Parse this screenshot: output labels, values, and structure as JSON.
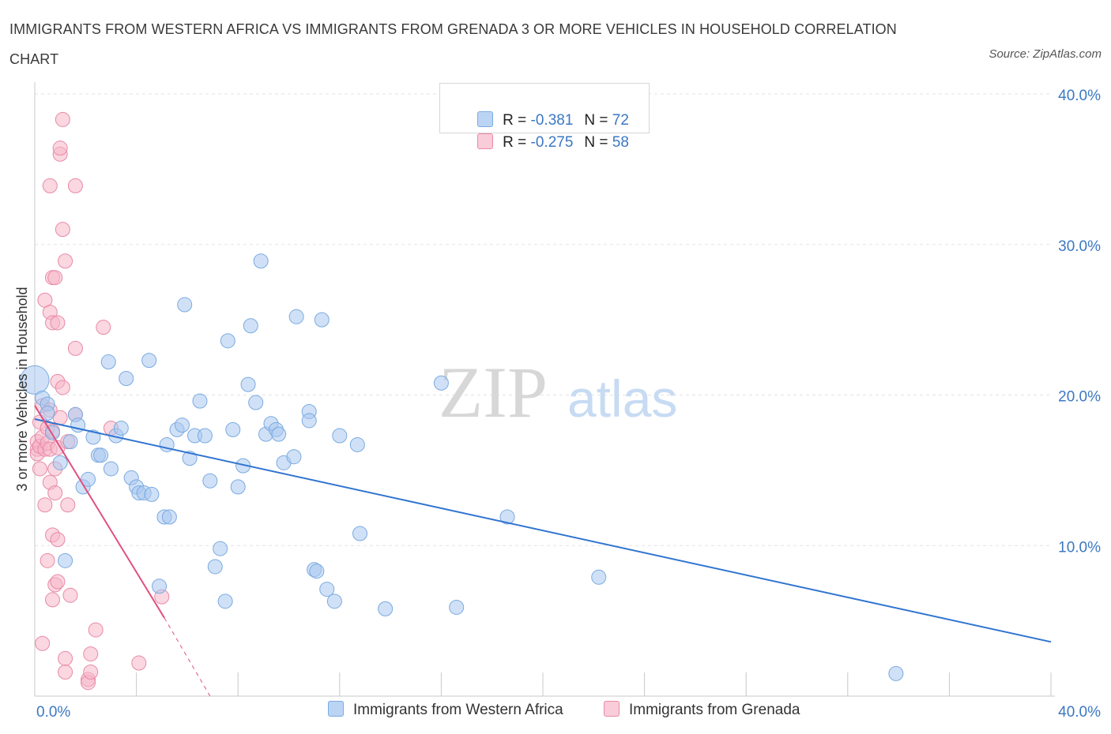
{
  "title": "IMMIGRANTS FROM WESTERN AFRICA VS IMMIGRANTS FROM GRENADA 3 OR MORE VEHICLES IN HOUSEHOLD CORRELATION CHART",
  "source": "Source: ZipAtlas.com",
  "watermark": {
    "zip": "ZIP",
    "atlas": "atlas"
  },
  "legend": {
    "rows": [
      {
        "r_label": "R =",
        "r_value": "-0.381",
        "n_label": "N =",
        "n_value": "72",
        "color": "#a9c8f0"
      },
      {
        "r_label": "R =",
        "r_value": "-0.275",
        "n_label": "N =",
        "n_value": "58",
        "color": "#f5b6c9"
      }
    ]
  },
  "colors": {
    "blue_fill": "#a9c8f0",
    "blue_stroke": "#7aaae0",
    "blue_line": "#2f74d0",
    "pink_fill": "#f5b6c9",
    "pink_stroke": "#e88aa6",
    "pink_line": "#e0507f",
    "grid": "#e3e3e3",
    "tick_label": "#3b78c3"
  },
  "chart_data": {
    "type": "scatter",
    "title": "IMMIGRANTS FROM WESTERN AFRICA VS IMMIGRANTS FROM GRENADA 3 OR MORE VEHICLES IN HOUSEHOLD CORRELATION CHART",
    "xlabel": "",
    "ylabel": "3 or more Vehicles in Household",
    "xlim": [
      0,
      40
    ],
    "ylim": [
      0,
      40
    ],
    "x_tick_labels": [
      "0.0%",
      "40.0%"
    ],
    "y_tick_labels": [
      "10.0%",
      "20.0%",
      "30.0%",
      "40.0%"
    ],
    "y_ticks": [
      10,
      20,
      30,
      40
    ],
    "grid": true,
    "series": [
      {
        "name": "Immigrants from Western Africa",
        "r": -0.381,
        "n": 72,
        "trend": {
          "x": [
            0,
            40
          ],
          "y": [
            18.4,
            3.6
          ]
        },
        "points": [
          {
            "x": 0.0,
            "y": 21.0,
            "big": 1
          },
          {
            "x": 0.3,
            "y": 19.8
          },
          {
            "x": 0.5,
            "y": 19.4
          },
          {
            "x": 0.5,
            "y": 18.8
          },
          {
            "x": 0.7,
            "y": 17.5
          },
          {
            "x": 1.0,
            "y": 15.5
          },
          {
            "x": 1.2,
            "y": 9.0
          },
          {
            "x": 1.4,
            "y": 16.9
          },
          {
            "x": 1.6,
            "y": 18.7
          },
          {
            "x": 1.7,
            "y": 18.0
          },
          {
            "x": 1.9,
            "y": 13.9
          },
          {
            "x": 2.1,
            "y": 14.4
          },
          {
            "x": 2.3,
            "y": 17.2
          },
          {
            "x": 2.5,
            "y": 16.0
          },
          {
            "x": 2.6,
            "y": 16.0
          },
          {
            "x": 2.9,
            "y": 22.2
          },
          {
            "x": 3.0,
            "y": 15.1
          },
          {
            "x": 3.2,
            "y": 17.3
          },
          {
            "x": 3.4,
            "y": 17.8
          },
          {
            "x": 3.6,
            "y": 21.1
          },
          {
            "x": 3.8,
            "y": 14.5
          },
          {
            "x": 4.0,
            "y": 13.9
          },
          {
            "x": 4.1,
            "y": 13.5
          },
          {
            "x": 4.3,
            "y": 13.5
          },
          {
            "x": 4.5,
            "y": 22.3
          },
          {
            "x": 4.6,
            "y": 13.4
          },
          {
            "x": 4.9,
            "y": 7.3
          },
          {
            "x": 5.1,
            "y": 11.9
          },
          {
            "x": 5.2,
            "y": 16.7
          },
          {
            "x": 5.3,
            "y": 11.9
          },
          {
            "x": 5.6,
            "y": 17.7
          },
          {
            "x": 5.8,
            "y": 18.0
          },
          {
            "x": 5.9,
            "y": 26.0
          },
          {
            "x": 6.1,
            "y": 15.8
          },
          {
            "x": 6.3,
            "y": 17.3
          },
          {
            "x": 6.5,
            "y": 19.6
          },
          {
            "x": 6.7,
            "y": 17.3
          },
          {
            "x": 6.9,
            "y": 14.3
          },
          {
            "x": 7.1,
            "y": 8.6
          },
          {
            "x": 7.3,
            "y": 9.8
          },
          {
            "x": 7.5,
            "y": 6.3
          },
          {
            "x": 7.6,
            "y": 23.6
          },
          {
            "x": 7.8,
            "y": 17.7
          },
          {
            "x": 8.0,
            "y": 13.9
          },
          {
            "x": 8.2,
            "y": 15.3
          },
          {
            "x": 8.4,
            "y": 20.7
          },
          {
            "x": 8.5,
            "y": 24.6
          },
          {
            "x": 8.7,
            "y": 19.5
          },
          {
            "x": 8.9,
            "y": 28.9
          },
          {
            "x": 9.1,
            "y": 17.4
          },
          {
            "x": 9.3,
            "y": 18.1
          },
          {
            "x": 9.5,
            "y": 17.7
          },
          {
            "x": 9.6,
            "y": 17.4
          },
          {
            "x": 9.8,
            "y": 15.5
          },
          {
            "x": 10.2,
            "y": 15.9
          },
          {
            "x": 10.3,
            "y": 25.2
          },
          {
            "x": 10.8,
            "y": 18.9
          },
          {
            "x": 10.8,
            "y": 18.3
          },
          {
            "x": 11.0,
            "y": 8.4
          },
          {
            "x": 11.1,
            "y": 8.3
          },
          {
            "x": 11.3,
            "y": 25.0
          },
          {
            "x": 11.5,
            "y": 7.1
          },
          {
            "x": 11.8,
            "y": 6.3
          },
          {
            "x": 12.0,
            "y": 17.3
          },
          {
            "x": 12.7,
            "y": 16.7
          },
          {
            "x": 12.8,
            "y": 10.8
          },
          {
            "x": 13.8,
            "y": 5.8
          },
          {
            "x": 16.0,
            "y": 20.8
          },
          {
            "x": 16.6,
            "y": 5.9
          },
          {
            "x": 18.6,
            "y": 11.9
          },
          {
            "x": 22.2,
            "y": 7.9
          },
          {
            "x": 33.9,
            "y": 1.5
          }
        ]
      },
      {
        "name": "Immigrants from Grenada",
        "r": -0.275,
        "n": 58,
        "trend": {
          "x": [
            0,
            5.1
          ],
          "y": [
            19.3,
            5.2
          ]
        },
        "trend_dashed": {
          "x": [
            5.1,
            6.9
          ],
          "y": [
            5.2,
            0
          ]
        },
        "points": [
          {
            "x": 0.1,
            "y": 16.4
          },
          {
            "x": 0.1,
            "y": 16.9
          },
          {
            "x": 0.1,
            "y": 16.1
          },
          {
            "x": 0.2,
            "y": 18.2
          },
          {
            "x": 0.2,
            "y": 16.6
          },
          {
            "x": 0.2,
            "y": 15.1
          },
          {
            "x": 0.3,
            "y": 3.5
          },
          {
            "x": 0.3,
            "y": 17.2
          },
          {
            "x": 0.3,
            "y": 19.3
          },
          {
            "x": 0.4,
            "y": 12.7
          },
          {
            "x": 0.4,
            "y": 16.4
          },
          {
            "x": 0.4,
            "y": 26.3
          },
          {
            "x": 0.5,
            "y": 9.0
          },
          {
            "x": 0.5,
            "y": 17.8
          },
          {
            "x": 0.5,
            "y": 16.8
          },
          {
            "x": 0.6,
            "y": 33.9
          },
          {
            "x": 0.6,
            "y": 14.2
          },
          {
            "x": 0.6,
            "y": 19.0
          },
          {
            "x": 0.6,
            "y": 16.4
          },
          {
            "x": 0.6,
            "y": 25.5
          },
          {
            "x": 0.7,
            "y": 27.8
          },
          {
            "x": 0.7,
            "y": 6.4
          },
          {
            "x": 0.7,
            "y": 17.6
          },
          {
            "x": 0.7,
            "y": 10.7
          },
          {
            "x": 0.7,
            "y": 24.8
          },
          {
            "x": 0.8,
            "y": 7.4
          },
          {
            "x": 0.8,
            "y": 27.8
          },
          {
            "x": 0.8,
            "y": 15.1
          },
          {
            "x": 0.8,
            "y": 13.5
          },
          {
            "x": 0.9,
            "y": 10.4
          },
          {
            "x": 0.9,
            "y": 20.9
          },
          {
            "x": 0.9,
            "y": 24.8
          },
          {
            "x": 0.9,
            "y": 7.6
          },
          {
            "x": 0.9,
            "y": 16.5
          },
          {
            "x": 1.0,
            "y": 36.0
          },
          {
            "x": 1.0,
            "y": 36.4
          },
          {
            "x": 1.0,
            "y": 18.5
          },
          {
            "x": 1.1,
            "y": 31.0
          },
          {
            "x": 1.1,
            "y": 38.3
          },
          {
            "x": 1.1,
            "y": 20.5
          },
          {
            "x": 1.2,
            "y": 28.9
          },
          {
            "x": 1.2,
            "y": 2.5
          },
          {
            "x": 1.2,
            "y": 1.6
          },
          {
            "x": 1.3,
            "y": 12.7
          },
          {
            "x": 1.4,
            "y": 6.7
          },
          {
            "x": 1.6,
            "y": 18.7
          },
          {
            "x": 1.6,
            "y": 23.1
          },
          {
            "x": 1.6,
            "y": 33.9
          },
          {
            "x": 2.1,
            "y": 1.1
          },
          {
            "x": 2.1,
            "y": 0.9
          },
          {
            "x": 2.2,
            "y": 1.6
          },
          {
            "x": 2.2,
            "y": 2.8
          },
          {
            "x": 2.4,
            "y": 4.4
          },
          {
            "x": 2.7,
            "y": 24.5
          },
          {
            "x": 3.0,
            "y": 17.8
          },
          {
            "x": 4.1,
            "y": 2.2
          },
          {
            "x": 5.0,
            "y": 6.6
          },
          {
            "x": 1.3,
            "y": 16.9
          }
        ]
      }
    ]
  }
}
